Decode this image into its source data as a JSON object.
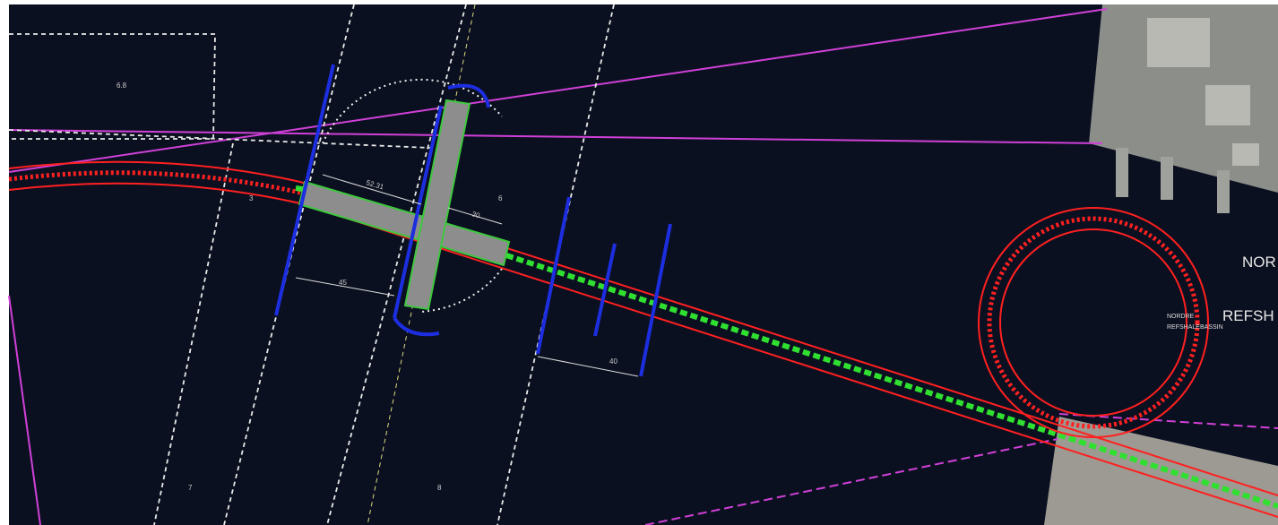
{
  "map": {
    "place_labels": [
      "NOR",
      "REFSH",
      "NORDRE",
      "REFSHALEBASSIN"
    ],
    "dimension_labels": [
      "52.31",
      "30",
      "45",
      "40"
    ],
    "area_labels": [
      "6.8",
      "3",
      "6",
      "7",
      "8"
    ]
  }
}
